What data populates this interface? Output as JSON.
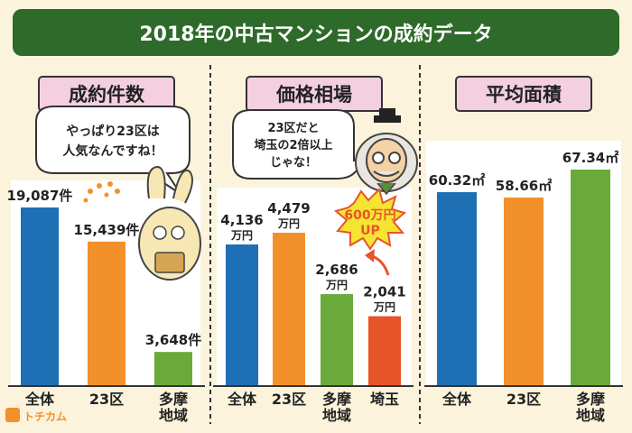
{
  "header": {
    "title": "2018年の中古マンションの成約データ"
  },
  "logo": {
    "text": "トチカム"
  },
  "colors": {
    "blue": "#1f6fb4",
    "orange": "#f2912a",
    "green": "#6aaa3a",
    "red": "#e8542a",
    "header_bg": "#2e6a2a",
    "badge_bg": "#f3cfe0"
  },
  "chart_data": [
    {
      "type": "bar",
      "title": "成約件数",
      "categories": [
        "全体",
        "23区",
        "多摩\n地域"
      ],
      "values": [
        19087,
        15439,
        3648
      ],
      "value_labels": [
        "19,087件",
        "15,439件",
        "3,648件"
      ],
      "colors": [
        "#1f6fb4",
        "#f2912a",
        "#6aaa3a"
      ],
      "ylim": [
        0,
        19087
      ],
      "grid": false,
      "annotation": "やっぱり23区は\n人気なんですね！"
    },
    {
      "type": "bar",
      "title": "価格相場",
      "categories": [
        "全体",
        "23区",
        "多摩\n地域",
        "埼玉"
      ],
      "values": [
        4136,
        4479,
        2686,
        2041
      ],
      "value_labels": [
        "4,136\n万円",
        "4,479\n万円",
        "2,686\n万円",
        "2,041\n万円"
      ],
      "colors": [
        "#1f6fb4",
        "#f2912a",
        "#6aaa3a",
        "#e8542a"
      ],
      "ylim": [
        0,
        4479
      ],
      "grid": false,
      "annotation": "23区だと\n埼玉の2倍以上\nじゃな！",
      "burst": "600万円\nUP"
    },
    {
      "type": "bar",
      "title": "平均面積",
      "categories": [
        "全体",
        "23区",
        "多摩\n地域"
      ],
      "values": [
        60.32,
        58.66,
        67.34
      ],
      "value_labels": [
        "60.32㎡",
        "58.66㎡",
        "67.34㎡"
      ],
      "colors": [
        "#1f6fb4",
        "#f2912a",
        "#6aaa3a"
      ],
      "ylim": [
        0,
        67.34
      ],
      "grid": false
    }
  ]
}
